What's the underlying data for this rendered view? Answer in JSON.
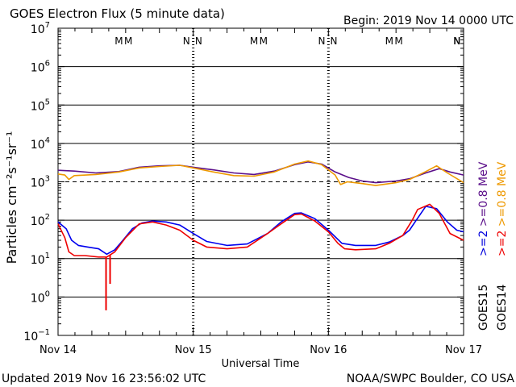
{
  "chart_data": {
    "type": "line",
    "title": "GOES Electron Flux (5 minute data)",
    "begin_label": "Begin: 2019 Nov 14 0000 UTC",
    "xlabel": "Universal Time",
    "ylabel": "Particles cm⁻²s⁻¹sr⁻¹",
    "x_unit": "days since 2019 Nov 14 0000 UTC",
    "xlim": [
      0,
      3
    ],
    "x_ticks": [
      {
        "x": 0,
        "label": "Nov 14"
      },
      {
        "x": 1,
        "label": "Nov 15"
      },
      {
        "x": 2,
        "label": "Nov 16"
      },
      {
        "x": 3,
        "label": "Nov 17"
      }
    ],
    "y_scale": "log",
    "ylim": [
      0.1,
      10000000
    ],
    "y_ticks": [
      {
        "base": "10",
        "exp": "7",
        "value": 10000000
      },
      {
        "base": "10",
        "exp": "6",
        "value": 1000000
      },
      {
        "base": "10",
        "exp": "5",
        "value": 100000
      },
      {
        "base": "10",
        "exp": "4",
        "value": 10000
      },
      {
        "base": "10",
        "exp": "3",
        "value": 1000
      },
      {
        "base": "10",
        "exp": "2",
        "value": 100
      },
      {
        "base": "10",
        "exp": "1",
        "value": 10
      },
      {
        "base": "10",
        "exp": "0",
        "value": 1
      },
      {
        "base": "10",
        "exp": "−1",
        "value": 0.1
      }
    ],
    "gridlines": [
      1000000,
      100000,
      10000,
      100,
      10,
      1
    ],
    "dashed_threshold": 1000,
    "markers": [
      {
        "x": 0.45,
        "label": "M",
        "color": "#dd0000"
      },
      {
        "x": 0.52,
        "label": "M",
        "color": "#0000dd"
      },
      {
        "x": 0.95,
        "label": "N",
        "color": "#dd0000"
      },
      {
        "x": 1.04,
        "label": "N",
        "color": "#0000dd"
      },
      {
        "x": 1.45,
        "label": "M",
        "color": "#dd0000"
      },
      {
        "x": 1.52,
        "label": "M",
        "color": "#0000dd"
      },
      {
        "x": 1.95,
        "label": "N",
        "color": "#dd0000"
      },
      {
        "x": 2.04,
        "label": "N",
        "color": "#0000dd"
      },
      {
        "x": 2.45,
        "label": "M",
        "color": "#dd0000"
      },
      {
        "x": 2.52,
        "label": "M",
        "color": "#0000dd"
      },
      {
        "x": 2.95,
        "label": "N",
        "color": "#dd0000"
      },
      {
        "x": 3.04,
        "label": "N",
        "color": "#0000dd"
      }
    ],
    "series": [
      {
        "name": "GOES15 >=0.8 MeV",
        "color": "#5b0f8a",
        "points": [
          [
            0,
            2000
          ],
          [
            0.12,
            1900
          ],
          [
            0.28,
            1700
          ],
          [
            0.45,
            1850
          ],
          [
            0.6,
            2400
          ],
          [
            0.75,
            2600
          ],
          [
            0.9,
            2700
          ],
          [
            1.0,
            2400
          ],
          [
            1.15,
            2050
          ],
          [
            1.3,
            1700
          ],
          [
            1.45,
            1550
          ],
          [
            1.6,
            1900
          ],
          [
            1.75,
            2800
          ],
          [
            1.85,
            3300
          ],
          [
            1.95,
            2900
          ],
          [
            2.05,
            1800
          ],
          [
            2.15,
            1300
          ],
          [
            2.25,
            1050
          ],
          [
            2.35,
            950
          ],
          [
            2.5,
            1050
          ],
          [
            2.6,
            1200
          ],
          [
            2.72,
            1700
          ],
          [
            2.82,
            2200
          ],
          [
            2.9,
            1800
          ],
          [
            3.0,
            1500
          ]
        ]
      },
      {
        "name": "GOES14 >=0.8 MeV",
        "color": "#ee9900",
        "points": [
          [
            0,
            1600
          ],
          [
            0.05,
            1500
          ],
          [
            0.08,
            1150
          ],
          [
            0.12,
            1450
          ],
          [
            0.28,
            1550
          ],
          [
            0.45,
            1800
          ],
          [
            0.6,
            2300
          ],
          [
            0.75,
            2500
          ],
          [
            0.9,
            2700
          ],
          [
            1.0,
            2300
          ],
          [
            1.15,
            1800
          ],
          [
            1.3,
            1450
          ],
          [
            1.45,
            1400
          ],
          [
            1.6,
            1800
          ],
          [
            1.75,
            2900
          ],
          [
            1.85,
            3500
          ],
          [
            1.95,
            2800
          ],
          [
            2.05,
            1500
          ],
          [
            2.09,
            850
          ],
          [
            2.14,
            1000
          ],
          [
            2.25,
            900
          ],
          [
            2.35,
            800
          ],
          [
            2.5,
            950
          ],
          [
            2.6,
            1150
          ],
          [
            2.72,
            1850
          ],
          [
            2.8,
            2600
          ],
          [
            2.88,
            1700
          ],
          [
            3.0,
            950
          ]
        ]
      },
      {
        "name": "GOES15 >=2 MeV",
        "color": "#0000ee",
        "points": [
          [
            0,
            90
          ],
          [
            0.06,
            60
          ],
          [
            0.1,
            30
          ],
          [
            0.15,
            22
          ],
          [
            0.22,
            20
          ],
          [
            0.3,
            18
          ],
          [
            0.36,
            13
          ],
          [
            0.42,
            17
          ],
          [
            0.48,
            30
          ],
          [
            0.55,
            60
          ],
          [
            0.62,
            85
          ],
          [
            0.7,
            95
          ],
          [
            0.8,
            90
          ],
          [
            0.9,
            75
          ],
          [
            1.0,
            45
          ],
          [
            1.1,
            28
          ],
          [
            1.25,
            22
          ],
          [
            1.4,
            24
          ],
          [
            1.55,
            45
          ],
          [
            1.65,
            90
          ],
          [
            1.75,
            150
          ],
          [
            1.8,
            155
          ],
          [
            1.9,
            110
          ],
          [
            2.0,
            55
          ],
          [
            2.1,
            25
          ],
          [
            2.2,
            22
          ],
          [
            2.35,
            22
          ],
          [
            2.45,
            27
          ],
          [
            2.55,
            40
          ],
          [
            2.6,
            55
          ],
          [
            2.65,
            100
          ],
          [
            2.72,
            230
          ],
          [
            2.8,
            200
          ],
          [
            2.88,
            90
          ],
          [
            2.95,
            55
          ],
          [
            3.0,
            50
          ]
        ]
      },
      {
        "name": "GOES14 >=2 MeV",
        "color": "#ee0000",
        "points": [
          [
            0,
            80
          ],
          [
            0.05,
            35
          ],
          [
            0.08,
            15
          ],
          [
            0.12,
            12
          ],
          [
            0.2,
            12
          ],
          [
            0.3,
            11
          ],
          [
            0.36,
            11
          ],
          [
            0.42,
            15
          ],
          [
            0.5,
            35
          ],
          [
            0.6,
            80
          ],
          [
            0.7,
            90
          ],
          [
            0.8,
            75
          ],
          [
            0.9,
            55
          ],
          [
            1.0,
            30
          ],
          [
            1.1,
            20
          ],
          [
            1.25,
            18
          ],
          [
            1.4,
            20
          ],
          [
            1.55,
            45
          ],
          [
            1.65,
            80
          ],
          [
            1.75,
            140
          ],
          [
            1.8,
            145
          ],
          [
            1.9,
            95
          ],
          [
            2.0,
            50
          ],
          [
            2.07,
            25
          ],
          [
            2.12,
            18
          ],
          [
            2.2,
            17
          ],
          [
            2.35,
            18
          ],
          [
            2.45,
            25
          ],
          [
            2.55,
            40
          ],
          [
            2.62,
            100
          ],
          [
            2.66,
            190
          ],
          [
            2.75,
            260
          ],
          [
            2.82,
            150
          ],
          [
            2.9,
            45
          ],
          [
            3.0,
            30
          ]
        ]
      }
    ],
    "spikes": [
      {
        "series": "GOES14 >=2 MeV",
        "x": 0.355,
        "min": 0.45
      },
      {
        "series": "GOES14 >=2 MeV",
        "x": 0.385,
        "min": 2.2
      }
    ],
    "legend_labels": [
      {
        "group": "GOES15",
        "text": ">=2",
        "color": "#0000dd"
      },
      {
        "group": "GOES15",
        "text": ">=0.8",
        "color": "#5b0f8a"
      },
      {
        "group": "GOES15",
        "text": "MeV",
        "color": "#5b0f8a"
      },
      {
        "group": "GOES14",
        "text": ">=2",
        "color": "#ee0000"
      },
      {
        "group": "GOES14",
        "text": ">=0.8",
        "color": "#ee9900"
      },
      {
        "group": "GOES14",
        "text": "MeV",
        "color": "#ee9900"
      }
    ],
    "legend_groups": [
      "GOES15",
      "GOES14"
    ],
    "legend_placement": "right, rotated vertical"
  },
  "footer": {
    "updated": "Updated 2019 Nov 16 23:56:02 UTC",
    "credit": "NOAA/SWPC Boulder, CO USA"
  }
}
